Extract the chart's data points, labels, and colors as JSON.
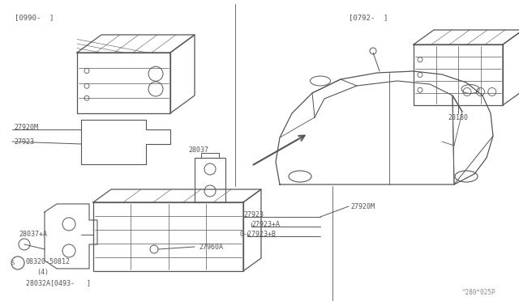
{
  "bg_color": "#ffffff",
  "line_color": "#555555",
  "figure_width": 6.4,
  "figure_height": 3.72,
  "watermark": "^280*025P",
  "bracket_top_left": "[0990-  ]",
  "bracket_top_right": "[0792-  ]"
}
